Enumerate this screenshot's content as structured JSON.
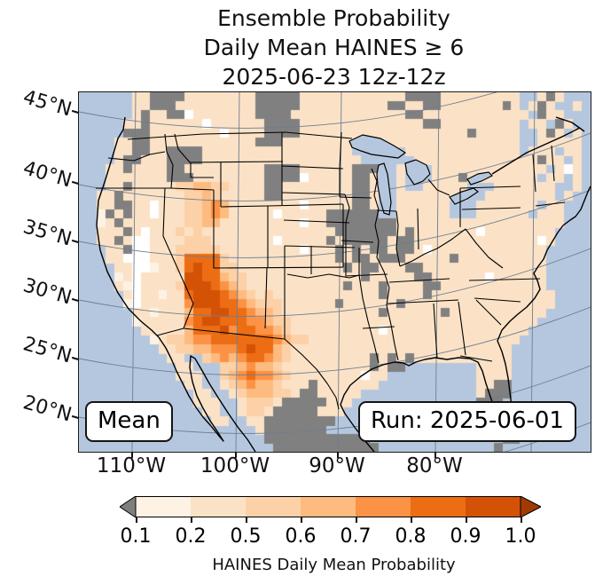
{
  "title": {
    "line1": "Ensemble Probability",
    "line2": "Daily Mean HAINES ≥ 6",
    "line3": "2025-06-23 12z-12z"
  },
  "map": {
    "badge_left": "Mean",
    "badge_right": "Run: 2025-06-01"
  },
  "axes": {
    "lat_ticks": [
      "45°N",
      "40°N",
      "35°N",
      "30°N",
      "25°N",
      "20°N"
    ],
    "lon_ticks": [
      "110°W",
      "100°W",
      "90°W",
      "80°W"
    ]
  },
  "colorbar": {
    "ticks": [
      "0.1",
      "0.2",
      "0.5",
      "0.6",
      "0.7",
      "0.8",
      "0.9",
      "1.0"
    ],
    "label": "HAINES Daily Mean Probability",
    "segment_colors": [
      "#fdf2e3",
      "#fbe2c6",
      "#fdd1a7",
      "#fdbb80",
      "#fb9245",
      "#ec6d13",
      "#d45206"
    ],
    "under_arrow_color": "#7f7f7f",
    "over_arrow_color": "#a33a03"
  },
  "colors": {
    "ocean": "#b5c7de",
    "missing_gray": "#808080",
    "gridline": "#6f7d90",
    "border": "#000000"
  },
  "chart_data": {
    "type": "heatmap",
    "title": "Ensemble Probability — Daily Mean HAINES ≥ 6 — 2025-06-23 12z-12z",
    "variable": "HAINES Daily Mean Probability",
    "statistic": "Mean",
    "model_run": "2025-06-01",
    "valid_period": "2025-06-23 12z-12z",
    "region": "Contiguous United States, northern Mexico, southern Canada",
    "levels": [
      0.1,
      0.2,
      0.5,
      0.6,
      0.7,
      0.8,
      0.9,
      1.0
    ],
    "lat_tick_values_deg_n": [
      45,
      40,
      35,
      30,
      25,
      20
    ],
    "lon_tick_values_deg_w": [
      110,
      100,
      90,
      80
    ],
    "legend_position": "bottom horizontal colorbar with under/over arrows",
    "grid_on": true,
    "summary": "Highest probabilities (0.7-1.0) over southern Nevada, Arizona, New Mexico, far west Texas and northwestern Mexico; secondary band 0.5-0.7 over southern Idaho and Utah; most of the CONUS 0.1-0.5; gray = missing/no data over parts of the Pacific Northwest, Yellowstone area, upper Midwest (Iowa/Wisconsin/Illinois/Indiana/Missouri), Gulf coast marshes, south Florida and interior Mexico.",
    "palette": {
      ".": "ocean",
      "g": "#808080",
      "w": "#ffffff",
      "1": "#fdf2e3",
      "2": "#fbe2c6",
      "3": "#fdd1a7",
      "4": "#fdbb80",
      "5": "#fb9245",
      "6": "#ec6d13",
      "7": "#d45206"
    },
    "palette_meaning": {
      ".": "water",
      "g": "missing / no data",
      "w": "probability < 0.1",
      "1": "0.1 - 0.2",
      "2": "0.2 - 0.5",
      "3": "0.5 - 0.6",
      "4": "0.6 - 0.7",
      "5": "0.7 - 0.8",
      "6": "0.8 - 0.9",
      "7": "0.9 - 1.0"
    },
    "grid": {
      "cols": 58,
      "rows": 40,
      "cells": [
        [
          "......",
          "22",
          "gggg",
          "22222222",
          "ggggg",
          "222222222222",
          "gggg",
          "222222222",
          "..2g2..."
        ],
        [
          "......",
          "22",
          "ggg2",
          "22222222",
          "ggggg",
          "2222222222",
          "gg",
          "22",
          "gg",
          "2222222",
          "g2",
          ".2g2..2."
        ],
        [
          "......",
          "2g",
          "22gg",
          "w2222222",
          "gggg2",
          "222222222222",
          "gg22",
          "222222222",
          "2.g22..."
        ],
        [
          ".....",
          "2",
          "2g",
          "2222",
          "22w22222",
          "2gggg",
          "222222222222",
          "22gg",
          "222222222",
          ".22.g2.."
        ],
        [
          ".....",
          "g",
          "gg",
          "2222",
          "2222w222",
          "2gggg",
          "222222222222",
          "2222",
          "222g22222",
          "..2g2.2."
        ],
        [
          "....",
          "2",
          "2gg",
          "2222",
          "22222222",
          "ggg22",
          "222222222222",
          "2222",
          "222222222",
          "..22222."
        ],
        [
          "....",
          "2",
          "2gg",
          "22",
          "gggg",
          "222222",
          "22222",
          "222222",
          "......",
          "2222",
          "222222222",
          ".222.22."
        ],
        [
          "....",
          "2",
          "gg2",
          "22",
          "gggg",
          "222222",
          "22222",
          "2222222",
          "......",
          "222",
          "222222222",
          "22g22.2."
        ],
        [
          "...",
          "2",
          "2g22",
          "22",
          "gg22",
          "2222222",
          "gggg",
          "222222",
          "ggg",
          "..",
          "2",
          "...",
          "2",
          "222222222",
          "222.2w2."
        ],
        [
          "...",
          "2",
          "2222",
          "22",
          "ggg2",
          "2222222",
          "gggg",
          "w22222",
          "gg2",
          "..",
          "2",
          "...",
          "2",
          "22g222222",
          "22.22.2."
        ],
        [
          "...",
          "2",
          "2g22",
          "22",
          "2334433",
          "2222",
          "gg22",
          "222222",
          "gg",
          "2",
          "..",
          "2",
          "..",
          "22",
          "222",
          "...",
          "222",
          "2222..2."
        ],
        [
          "..",
          "2",
          "2g222",
          "22",
          "2233432",
          "2222",
          "gg22",
          "222222",
          "gg2",
          "..",
          "22222",
          "222..2222",
          "2222.2.."
        ],
        [
          "..",
          "2",
          "2gg22",
          "w2",
          "2233",
          "454",
          "2222",
          "2222",
          "w22222",
          "gg2",
          "..",
          "222222",
          "...",
          "22222",
          "22.22..."
        ],
        [
          "..",
          "1",
          "g2g22",
          "w2",
          "2233",
          "454",
          "2222",
          "2w22",
          "222",
          "ggggg",
          "g",
          "..",
          "222222",
          "...",
          "22222",
          "2.222..."
        ],
        [
          "..",
          "1",
          "2g222",
          "22",
          "2233",
          "442",
          "2222",
          "2222",
          "w22",
          "ggggg",
          "ggg",
          "22222",
          "2222",
          "22222",
          "222",
          "22..."
        ],
        [
          "..",
          "2",
          "22g2w",
          "22",
          "2323",
          "222",
          "2222",
          "2222",
          "222",
          "2gggg",
          "ggg",
          "2g",
          "222",
          "2222",
          "w2222",
          "222",
          "2...."
        ],
        [
          "..",
          "2",
          "2g2ww",
          "22",
          "2233",
          "322",
          "2222",
          "2w22",
          "222",
          "g2ggg",
          "gg2",
          "gg",
          "222",
          "2222",
          "22222",
          "22w",
          "2...."
        ],
        [
          "...",
          "2",
          "2gww",
          "22",
          "2333",
          "332",
          "2222",
          "2222",
          "w22",
          "2g2g2",
          "gg2",
          "gg",
          "2w2",
          "2222",
          "22222",
          "222",
          "....."
        ],
        [
          "...",
          "2",
          "2www",
          "22",
          "2366",
          "663",
          "2222",
          "2222",
          "222",
          "2g2gg",
          "2gg",
          "g2",
          "222",
          "2g22",
          "22222",
          "222",
          "....."
        ],
        [
          "....",
          "2",
          "2ww",
          "12",
          "2367",
          "663",
          "3222",
          "2222",
          "222",
          "22g2g",
          "g22",
          "2g",
          "g22",
          "2222",
          "22222",
          "222",
          "....."
        ],
        [
          "....",
          "1",
          "2w2",
          "22",
          "2277",
          "664",
          "3322",
          "2222",
          "222",
          "2222g",
          "222",
          "22",
          "gg2",
          "2222",
          "2w222",
          "222",
          "....."
        ],
        [
          "....",
          "2",
          "1w2",
          "22",
          "2377",
          "765",
          "4322",
          "2222",
          "222",
          "22g22",
          "2g2",
          "22",
          "2gg",
          "2222",
          "22222",
          "222",
          "....."
        ],
        [
          ".....",
          "2",
          "w2",
          "21",
          "2267",
          "776",
          "5432",
          "3222",
          "222",
          "22222",
          "2g2",
          "22",
          "2g2",
          "2222",
          "22222",
          "222",
          "2...."
        ],
        [
          ".....",
          "1",
          "w2",
          "22",
          "2257",
          "776",
          "6543",
          "3322",
          "222",
          "2g222",
          "222",
          "g2",
          "222",
          "2222",
          "22222",
          "222",
          "2...."
        ],
        [
          "......",
          "2",
          "2",
          "12",
          "2246",
          "677",
          "6654",
          "4322",
          "222",
          "22222",
          "2g2",
          "22",
          "222",
          "g222",
          "22222",
          "222",
          "....."
        ],
        [
          "......",
          "1",
          "2",
          "22",
          "2256",
          "776",
          "6655",
          "4332",
          "222",
          "22222",
          "222",
          "22",
          "222",
          "2222",
          "22222",
          "22",
          "......"
        ],
        [
          ".......",
          "2",
          "22",
          "2246",
          "667",
          "5665",
          "5432",
          "222",
          "22222",
          "2w2",
          "22",
          "222",
          "2222",
          "22222",
          "2",
          "......."
        ],
        [
          "........",
          "12",
          "3345",
          "566",
          "6666",
          "6543",
          "322",
          "22222",
          "222",
          "22",
          "222",
          "2222",
          "2222",
          "2",
          "........"
        ],
        [
          ".........",
          "2",
          "2334",
          "455",
          "5676",
          "6432",
          "222",
          "22222",
          "222",
          "22",
          "222",
          "2222",
          "2222",
          "........."
        ],
        [
          "..........",
          "22",
          "..",
          "345",
          "4566",
          "5432",
          "222",
          "22222",
          "g2g",
          "2g222",
          "2222",
          "2222",
          "........."
        ],
        [
          "...........",
          "22",
          "...",
          "3",
          "3454",
          "4322",
          "222",
          "22222",
          "g2gg",
          ".......",
          ".",
          "2222",
          "........."
        ],
        [
          "...........",
          "222",
          "..",
          "3",
          "4565",
          "5432",
          "222",
          "2222w",
          "22",
          "..........",
          "2222",
          "........."
        ],
        [
          "............",
          "22",
          "..",
          "2",
          "3454",
          "4322",
          "2g2",
          "222222",
          "...........",
          "22gg",
          "........."
        ],
        [
          ".............",
          "22",
          "..",
          "2344",
          "4332",
          "gg2",
          "2222",
          ".............",
          "2ggg",
          "........."
        ],
        [
          ".............",
          "222",
          "..",
          "233",
          "32gg",
          "ggg",
          "222",
          "..............",
          "ggg.",
          "........."
        ],
        [
          "..............",
          "22",
          "..",
          "233",
          "2ggg",
          "gg",
          "222",
          "...............",
          ".",
          "gg",
          ".........."
        ],
        [
          "...............",
          "22",
          "..",
          "22",
          "gggg",
          "gggg",
          "................",
          ".g.",
          ".........."
        ],
        [
          "................",
          "....",
          "2ggggggg",
          ".............................."
        ],
        [
          ".....................",
          "gggggggggggg",
          "...............",
          "gg",
          "........"
        ],
        [
          "......................",
          "gggggggggggg",
          ".............",
          "g",
          ".........."
        ]
      ]
    }
  }
}
